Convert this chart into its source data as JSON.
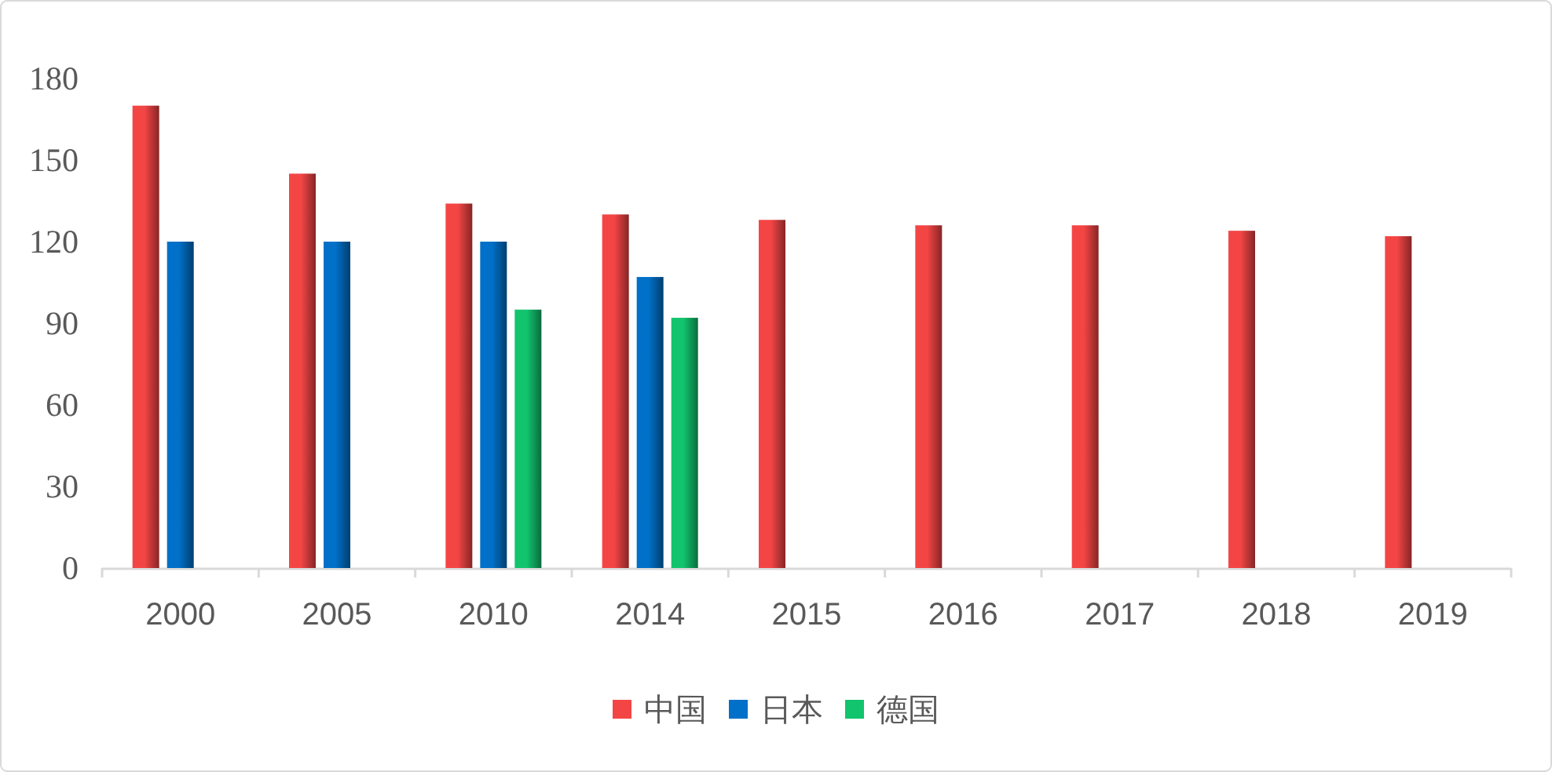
{
  "chart_data": {
    "type": "bar",
    "categories": [
      "2000",
      "2005",
      "2010",
      "2014",
      "2015",
      "2016",
      "2017",
      "2018",
      "2019"
    ],
    "series": [
      {
        "name": "中国",
        "color": "#f44545",
        "values": [
          170,
          145,
          134,
          130,
          128,
          126,
          126,
          124,
          122
        ]
      },
      {
        "name": "日本",
        "color": "#0070c8",
        "values": [
          120,
          120,
          120,
          107,
          null,
          null,
          null,
          null,
          null
        ]
      },
      {
        "name": "德国",
        "color": "#12c46e",
        "values": [
          null,
          null,
          95,
          92,
          null,
          null,
          null,
          null,
          null
        ]
      }
    ],
    "ylim": [
      0,
      180
    ],
    "yticks": [
      0,
      30,
      60,
      90,
      120,
      150,
      180
    ],
    "grid": false,
    "legend": "bottom"
  }
}
